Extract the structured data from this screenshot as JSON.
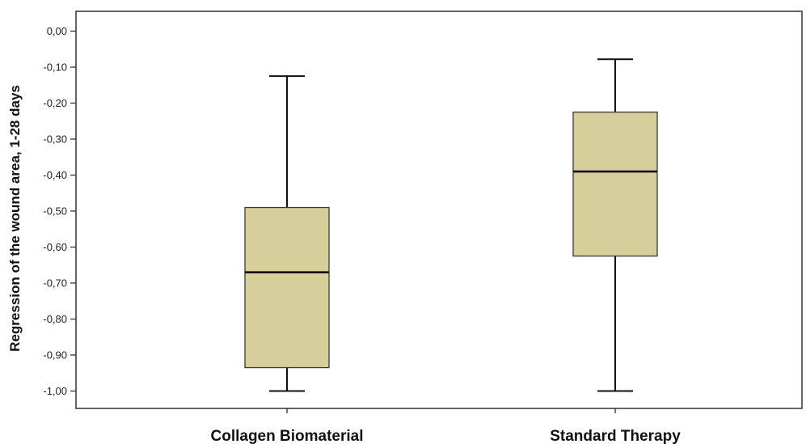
{
  "chart_data": {
    "type": "box",
    "title": "",
    "xlabel": "",
    "ylabel": "Regression of the wound area, 1-28 days",
    "ylim": [
      -1.05,
      0.05
    ],
    "yticks": [
      {
        "value": 0.0,
        "label": "0,00"
      },
      {
        "value": -0.1,
        "label": "-0,10"
      },
      {
        "value": -0.2,
        "label": "-0,20"
      },
      {
        "value": -0.3,
        "label": "-0,30"
      },
      {
        "value": -0.4,
        "label": "-0,40"
      },
      {
        "value": -0.5,
        "label": "-0,50"
      },
      {
        "value": -0.6,
        "label": "-0,60"
      },
      {
        "value": -0.7,
        "label": "-0,70"
      },
      {
        "value": -0.8,
        "label": "-0,80"
      },
      {
        "value": -0.9,
        "label": "-0,90"
      },
      {
        "value": -1.0,
        "label": "-1,00"
      }
    ],
    "categories": [
      "Collagen Biomaterial",
      "Standard Therapy"
    ],
    "boxes": [
      {
        "min": -1.0,
        "q1": -0.935,
        "median": -0.67,
        "q3": -0.49,
        "max": -0.125
      },
      {
        "min": -1.0,
        "q1": -0.625,
        "median": -0.39,
        "q3": -0.225,
        "max": -0.078
      }
    ],
    "box_color": "#d6cf9c",
    "line_color": "#111111",
    "grid": false
  }
}
